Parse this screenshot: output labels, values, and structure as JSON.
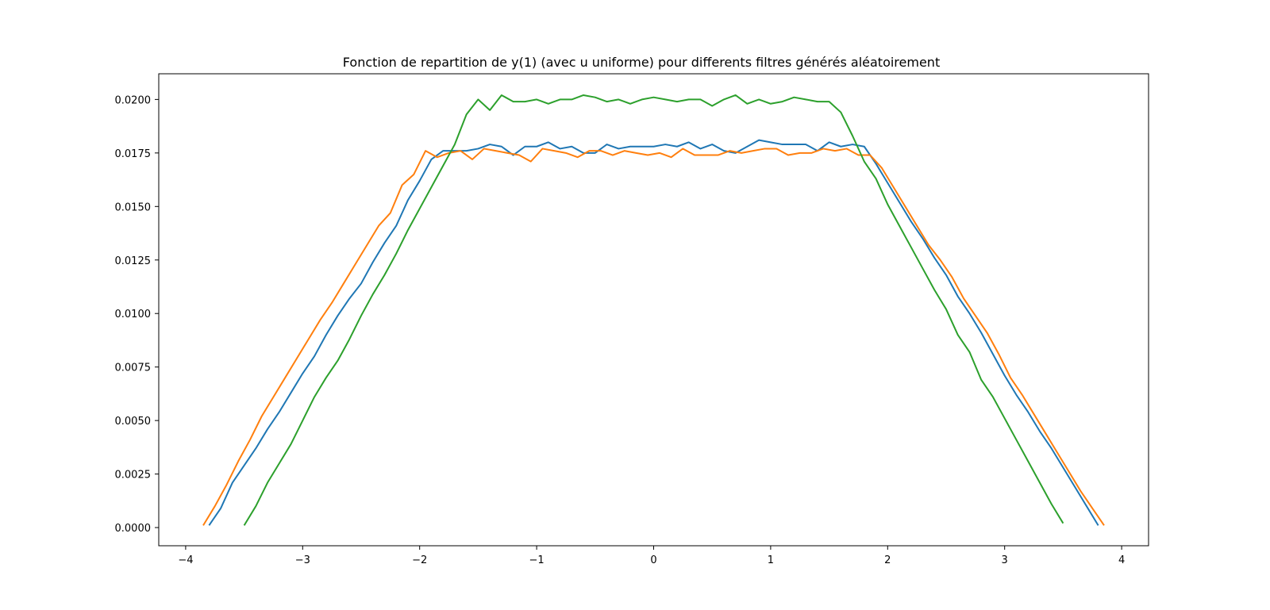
{
  "chart_data": {
    "type": "line",
    "title": "Fonction de repartition de y(1) (avec u uniforme) pour differents filtres générés aléatoirement",
    "xlabel": "",
    "ylabel": "",
    "xlim": [
      -4.23,
      4.23
    ],
    "ylim": [
      -0.00085,
      0.0212
    ],
    "x_ticks": [
      -4,
      -3,
      -2,
      -1,
      0,
      1,
      2,
      3,
      4
    ],
    "x_tick_labels": [
      "−4",
      "−3",
      "−2",
      "−1",
      "0",
      "1",
      "2",
      "3",
      "4"
    ],
    "y_ticks": [
      0.0,
      0.0025,
      0.005,
      0.0075,
      0.01,
      0.0125,
      0.015,
      0.0175,
      0.02
    ],
    "y_tick_labels": [
      "0.0000",
      "0.0025",
      "0.0050",
      "0.0075",
      "0.0100",
      "0.0125",
      "0.0150",
      "0.0175",
      "0.0200"
    ],
    "series": [
      {
        "name": "series-1",
        "color": "#1f77b4",
        "x": [
          -3.8,
          -3.7,
          -3.6,
          -3.5,
          -3.4,
          -3.3,
          -3.2,
          -3.1,
          -3.0,
          -2.9,
          -2.8,
          -2.7,
          -2.6,
          -2.5,
          -2.4,
          -2.3,
          -2.2,
          -2.1,
          -2.0,
          -1.9,
          -1.8,
          -1.7,
          -1.6,
          -1.5,
          -1.4,
          -1.3,
          -1.2,
          -1.1,
          -1.0,
          -0.9,
          -0.8,
          -0.7,
          -0.6,
          -0.5,
          -0.4,
          -0.3,
          -0.2,
          -0.1,
          0.0,
          0.1,
          0.2,
          0.3,
          0.4,
          0.5,
          0.6,
          0.7,
          0.8,
          0.9,
          1.0,
          1.1,
          1.2,
          1.3,
          1.4,
          1.5,
          1.6,
          1.7,
          1.8,
          1.9,
          2.0,
          2.1,
          2.2,
          2.3,
          2.4,
          2.5,
          2.6,
          2.7,
          2.8,
          2.9,
          3.0,
          3.1,
          3.2,
          3.3,
          3.4,
          3.5,
          3.6,
          3.7,
          3.8
        ],
        "y": [
          0.0001,
          0.0009,
          0.0021,
          0.0029,
          0.0037,
          0.0046,
          0.0054,
          0.0063,
          0.0072,
          0.008,
          0.009,
          0.0099,
          0.0107,
          0.0114,
          0.0124,
          0.0133,
          0.0141,
          0.0153,
          0.0162,
          0.0172,
          0.0176,
          0.0176,
          0.0176,
          0.0177,
          0.0179,
          0.0178,
          0.0174,
          0.0178,
          0.0178,
          0.018,
          0.0177,
          0.0178,
          0.0175,
          0.0175,
          0.0179,
          0.0177,
          0.0178,
          0.0178,
          0.0178,
          0.0179,
          0.0178,
          0.018,
          0.0177,
          0.0179,
          0.0176,
          0.0175,
          0.0178,
          0.0181,
          0.018,
          0.0179,
          0.0179,
          0.0179,
          0.0176,
          0.018,
          0.0178,
          0.0179,
          0.0178,
          0.017,
          0.0161,
          0.0152,
          0.0143,
          0.0135,
          0.0126,
          0.0118,
          0.0108,
          0.01,
          0.0091,
          0.0081,
          0.0071,
          0.0062,
          0.0054,
          0.0045,
          0.0037,
          0.0028,
          0.0019,
          0.001,
          0.0001
        ]
      },
      {
        "name": "series-2",
        "color": "#ff7f0e",
        "x": [
          -3.85,
          -3.75,
          -3.65,
          -3.55,
          -3.45,
          -3.35,
          -3.25,
          -3.15,
          -3.05,
          -2.95,
          -2.85,
          -2.75,
          -2.65,
          -2.55,
          -2.45,
          -2.35,
          -2.25,
          -2.15,
          -2.05,
          -1.95,
          -1.85,
          -1.75,
          -1.65,
          -1.55,
          -1.45,
          -1.35,
          -1.25,
          -1.15,
          -1.05,
          -0.95,
          -0.85,
          -0.75,
          -0.65,
          -0.55,
          -0.45,
          -0.35,
          -0.25,
          -0.15,
          -0.05,
          0.05,
          0.15,
          0.25,
          0.35,
          0.45,
          0.55,
          0.65,
          0.75,
          0.85,
          0.95,
          1.05,
          1.15,
          1.25,
          1.35,
          1.45,
          1.55,
          1.65,
          1.75,
          1.85,
          1.95,
          2.05,
          2.15,
          2.25,
          2.35,
          2.45,
          2.55,
          2.65,
          2.75,
          2.85,
          2.95,
          3.05,
          3.15,
          3.25,
          3.35,
          3.45,
          3.55,
          3.65,
          3.75,
          3.85
        ],
        "y": [
          0.0001,
          0.001,
          0.002,
          0.0031,
          0.0041,
          0.0052,
          0.0061,
          0.007,
          0.0079,
          0.0088,
          0.0097,
          0.0105,
          0.0114,
          0.0123,
          0.0132,
          0.0141,
          0.0147,
          0.016,
          0.0165,
          0.0176,
          0.0173,
          0.0175,
          0.0176,
          0.0172,
          0.0177,
          0.0176,
          0.0175,
          0.0174,
          0.0171,
          0.0177,
          0.0176,
          0.0175,
          0.0173,
          0.0176,
          0.0176,
          0.0174,
          0.0176,
          0.0175,
          0.0174,
          0.0175,
          0.0173,
          0.0177,
          0.0174,
          0.0174,
          0.0174,
          0.0176,
          0.0175,
          0.0176,
          0.0177,
          0.0177,
          0.0174,
          0.0175,
          0.0175,
          0.0177,
          0.0176,
          0.0177,
          0.0174,
          0.0174,
          0.0168,
          0.0159,
          0.015,
          0.0141,
          0.0132,
          0.0125,
          0.0117,
          0.0107,
          0.0099,
          0.0091,
          0.0081,
          0.007,
          0.0062,
          0.0053,
          0.0044,
          0.0035,
          0.0026,
          0.0017,
          0.0009,
          0.0001
        ]
      },
      {
        "name": "series-3",
        "color": "#2ca02c",
        "x": [
          -3.5,
          -3.4,
          -3.3,
          -3.2,
          -3.1,
          -3.0,
          -2.9,
          -2.8,
          -2.7,
          -2.6,
          -2.5,
          -2.4,
          -2.3,
          -2.2,
          -2.1,
          -2.0,
          -1.9,
          -1.8,
          -1.7,
          -1.6,
          -1.5,
          -1.4,
          -1.3,
          -1.2,
          -1.1,
          -1.0,
          -0.9,
          -0.8,
          -0.7,
          -0.6,
          -0.5,
          -0.4,
          -0.3,
          -0.2,
          -0.1,
          0.0,
          0.1,
          0.2,
          0.3,
          0.4,
          0.5,
          0.6,
          0.7,
          0.8,
          0.9,
          1.0,
          1.1,
          1.2,
          1.3,
          1.4,
          1.5,
          1.6,
          1.7,
          1.8,
          1.9,
          2.0,
          2.1,
          2.2,
          2.3,
          2.4,
          2.5,
          2.6,
          2.7,
          2.8,
          2.9,
          3.0,
          3.1,
          3.2,
          3.3,
          3.4,
          3.5
        ],
        "y": [
          0.0001,
          0.001,
          0.0021,
          0.003,
          0.0039,
          0.005,
          0.0061,
          0.007,
          0.0078,
          0.0088,
          0.0099,
          0.0109,
          0.0118,
          0.0128,
          0.0139,
          0.0149,
          0.0159,
          0.0169,
          0.0179,
          0.0193,
          0.02,
          0.0195,
          0.0202,
          0.0199,
          0.0199,
          0.02,
          0.0198,
          0.02,
          0.02,
          0.0202,
          0.0201,
          0.0199,
          0.02,
          0.0198,
          0.02,
          0.0201,
          0.02,
          0.0199,
          0.02,
          0.02,
          0.0197,
          0.02,
          0.0202,
          0.0198,
          0.02,
          0.0198,
          0.0199,
          0.0201,
          0.02,
          0.0199,
          0.0199,
          0.0194,
          0.0183,
          0.0171,
          0.0163,
          0.0151,
          0.0141,
          0.0131,
          0.0121,
          0.0111,
          0.0102,
          0.009,
          0.0082,
          0.0069,
          0.0061,
          0.0051,
          0.0041,
          0.0031,
          0.0021,
          0.0011,
          0.0002
        ]
      }
    ]
  }
}
